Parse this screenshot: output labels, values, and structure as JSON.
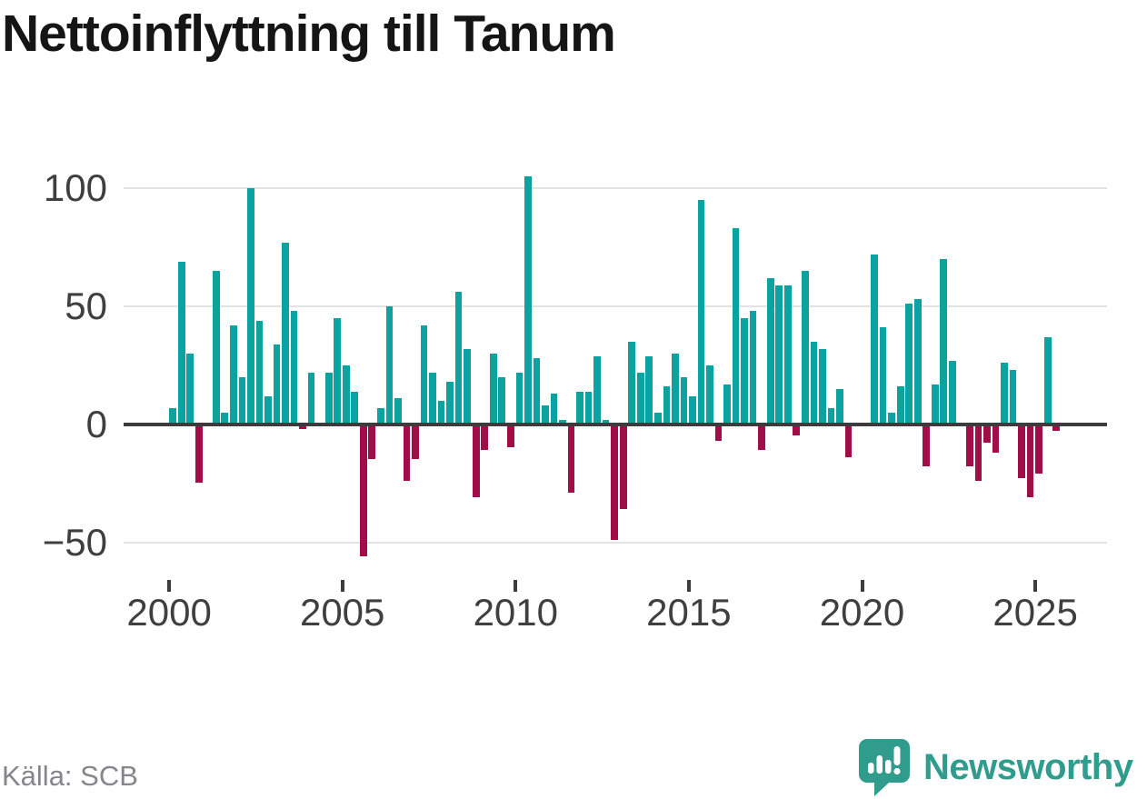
{
  "title": "Nettoinflyttning till Tanum",
  "source_label": "Källa: SCB",
  "brand": {
    "name": "Newsworthy",
    "icon": "newsworthy-speech-bubble-bar-chart-icon",
    "color": "#2f9c8d"
  },
  "colors": {
    "positive": "#0ba3a0",
    "negative": "#a10d49",
    "axis": "#3c3c3c",
    "grid": "#e3e3e3",
    "tick_label": "#3f3f3f",
    "title": "#151515",
    "source_text": "#85858c"
  },
  "chart_data": {
    "type": "bar",
    "title": "Nettoinflyttning till Tanum",
    "series_name": "Nettoinflyttning per kvartal",
    "x": [
      "2000 Q1",
      "2000 Q2",
      "2000 Q3",
      "2000 Q4",
      "2001 Q1",
      "2001 Q2",
      "2001 Q3",
      "2001 Q4",
      "2002 Q1",
      "2002 Q2",
      "2002 Q3",
      "2002 Q4",
      "2003 Q1",
      "2003 Q2",
      "2003 Q3",
      "2003 Q4",
      "2004 Q1",
      "2004 Q2",
      "2004 Q3",
      "2004 Q4",
      "2005 Q1",
      "2005 Q2",
      "2005 Q3",
      "2005 Q4",
      "2006 Q1",
      "2006 Q2",
      "2006 Q3",
      "2006 Q4",
      "2007 Q1",
      "2007 Q2",
      "2007 Q3",
      "2007 Q4",
      "2008 Q1",
      "2008 Q2",
      "2008 Q3",
      "2008 Q4",
      "2009 Q1",
      "2009 Q2",
      "2009 Q3",
      "2009 Q4",
      "2010 Q1",
      "2010 Q2",
      "2010 Q3",
      "2010 Q4",
      "2011 Q1",
      "2011 Q2",
      "2011 Q3",
      "2011 Q4",
      "2012 Q1",
      "2012 Q2",
      "2012 Q3",
      "2012 Q4",
      "2013 Q1",
      "2013 Q2",
      "2013 Q3",
      "2013 Q4",
      "2014 Q1",
      "2014 Q2",
      "2014 Q3",
      "2014 Q4",
      "2015 Q1",
      "2015 Q2",
      "2015 Q3",
      "2015 Q4",
      "2016 Q1",
      "2016 Q2",
      "2016 Q3",
      "2016 Q4",
      "2017 Q1",
      "2017 Q2",
      "2017 Q3",
      "2017 Q4",
      "2018 Q1",
      "2018 Q2",
      "2018 Q3",
      "2018 Q4",
      "2019 Q1",
      "2019 Q2",
      "2019 Q3",
      "2019 Q4",
      "2020 Q1",
      "2020 Q2",
      "2020 Q3",
      "2020 Q4",
      "2021 Q1",
      "2021 Q2",
      "2021 Q3",
      "2021 Q4",
      "2022 Q1",
      "2022 Q2",
      "2022 Q3",
      "2022 Q4",
      "2023 Q1",
      "2023 Q2",
      "2023 Q3",
      "2023 Q4",
      "2024 Q1",
      "2024 Q2",
      "2024 Q3",
      "2024 Q4",
      "2025 Q1",
      "2025 Q2",
      "2025 Q3"
    ],
    "values": [
      7,
      69,
      30,
      -24,
      0,
      65,
      5,
      42,
      20,
      100,
      44,
      12,
      34,
      77,
      48,
      -1,
      22,
      0,
      22,
      45,
      25,
      14,
      -55,
      -14,
      7,
      50,
      11,
      -23,
      -14,
      42,
      22,
      10,
      18,
      56,
      32,
      -30,
      -10,
      30,
      20,
      -9,
      22,
      105,
      28,
      8,
      13,
      2,
      -28,
      14,
      14,
      29,
      2,
      -48,
      -35,
      35,
      22,
      29,
      5,
      16,
      30,
      20,
      12,
      95,
      25,
      -6,
      17,
      83,
      45,
      48,
      -10,
      62,
      59,
      59,
      -4,
      65,
      35,
      32,
      7,
      15,
      -13,
      0,
      0,
      72,
      41,
      5,
      16,
      51,
      53,
      -17,
      17,
      70,
      27,
      0,
      -17,
      -23,
      -7,
      -11,
      26,
      23,
      -22,
      -30,
      -20,
      37,
      -2
    ],
    "y_ticks": [
      100,
      50,
      0,
      -50
    ],
    "y_tick_labels": [
      "100",
      "50",
      "0",
      "−50"
    ],
    "x_ticks": [
      2000,
      2005,
      2010,
      2015,
      2020,
      2025
    ],
    "x_tick_labels": [
      "2000",
      "2005",
      "2010",
      "2015",
      "2020",
      "2025"
    ],
    "ylim": [
      -60,
      112
    ],
    "grid": true,
    "legend": false,
    "positive_color": "#0ba3a0",
    "negative_color": "#a10d49"
  }
}
